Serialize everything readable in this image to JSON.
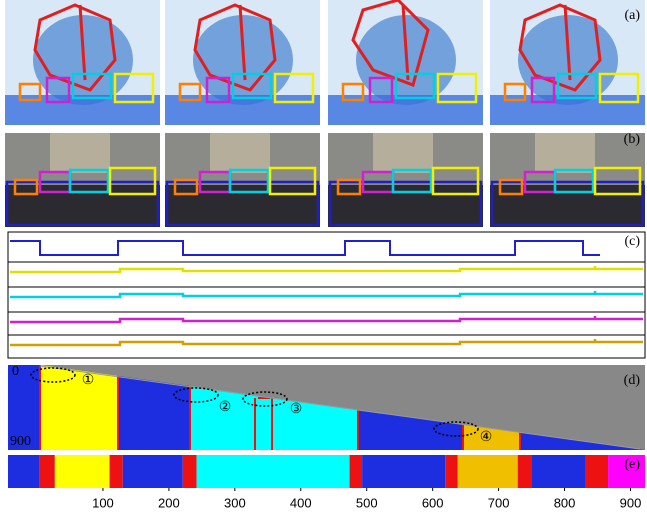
{
  "panel_labels": [
    "(a)",
    "(b)",
    "(c)",
    "(d)",
    "(e)"
  ],
  "plot_d": {
    "yticks": [
      0,
      900
    ],
    "markers": [
      "①",
      "②",
      "③",
      "④"
    ]
  },
  "chart_data": {
    "type": "timeline",
    "xlim": [
      -44,
      922
    ],
    "xticks": [
      100,
      200,
      300,
      400,
      500,
      600,
      700,
      800,
      900
    ],
    "segments": [
      {
        "start": -44,
        "end": 4,
        "color": "#1c2ee0"
      },
      {
        "start": 4,
        "end": 27,
        "color": "#ee1111"
      },
      {
        "start": 27,
        "end": 110,
        "color": "#ffff00"
      },
      {
        "start": 110,
        "end": 130,
        "color": "#ee1111"
      },
      {
        "start": 130,
        "end": 221,
        "color": "#1c2ee0"
      },
      {
        "start": 221,
        "end": 242,
        "color": "#ee1111"
      },
      {
        "start": 242,
        "end": 474,
        "color": "#00ffff"
      },
      {
        "start": 474,
        "end": 493,
        "color": "#ee1111"
      },
      {
        "start": 493,
        "end": 619,
        "color": "#1c2ee0"
      },
      {
        "start": 619,
        "end": 638,
        "color": "#ee1111"
      },
      {
        "start": 638,
        "end": 729,
        "color": "#f0c000"
      },
      {
        "start": 729,
        "end": 750,
        "color": "#ee1111"
      },
      {
        "start": 750,
        "end": 831,
        "color": "#1c2ee0"
      },
      {
        "start": 831,
        "end": 866,
        "color": "#ee1111"
      },
      {
        "start": 866,
        "end": 922,
        "color": "#ff00ff"
      }
    ]
  }
}
